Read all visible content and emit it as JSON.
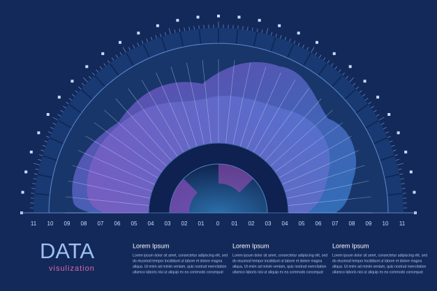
{
  "axis_labels": [
    "11",
    "10",
    "09",
    "08",
    "07",
    "06",
    "05",
    "04",
    "03",
    "02",
    "01",
    "0",
    "01",
    "02",
    "03",
    "04",
    "05",
    "06",
    "07",
    "08",
    "09",
    "10",
    "11"
  ],
  "title": "DATA",
  "subtitle": "visulization",
  "columns": [
    {
      "heading": "Lorem Ipsum",
      "lines": [
        "Lorem ipsum dolor sit amet, consectetur adipiscing elit, sed",
        "do eiusmod tempor incididunt ut labore et dolore magna",
        "aliqua. Ut enim ad minim veniam, quis nostrud exercitation",
        "ullamco laboris nisi ut aliquip ex ea commodo consequat"
      ]
    },
    {
      "heading": "Lorem Ipsum",
      "lines": [
        "Lorem ipsum dolor sit amet, consectetur adipiscing elit, sed",
        "do eiusmod tempor incididunt ut labore et dolore magna",
        "aliqua. Ut enim ad minim veniam, quis nostrud exercitation",
        "ullamco laboris nisi ut aliquip ex ea commodo consequat"
      ]
    },
    {
      "heading": "Lorem Ipsum",
      "lines": [
        "Lorem ipsum dolor sit amet, consectetur adipiscing elit, sed",
        "do eiusmod tempor incididunt ut labore et dolore magna",
        "aliqua. Ut enim ad minim veniam, quis nostrud exercitation",
        "ullamco laboris nisi ut aliquip ex ea commodo consequat"
      ]
    }
  ]
}
